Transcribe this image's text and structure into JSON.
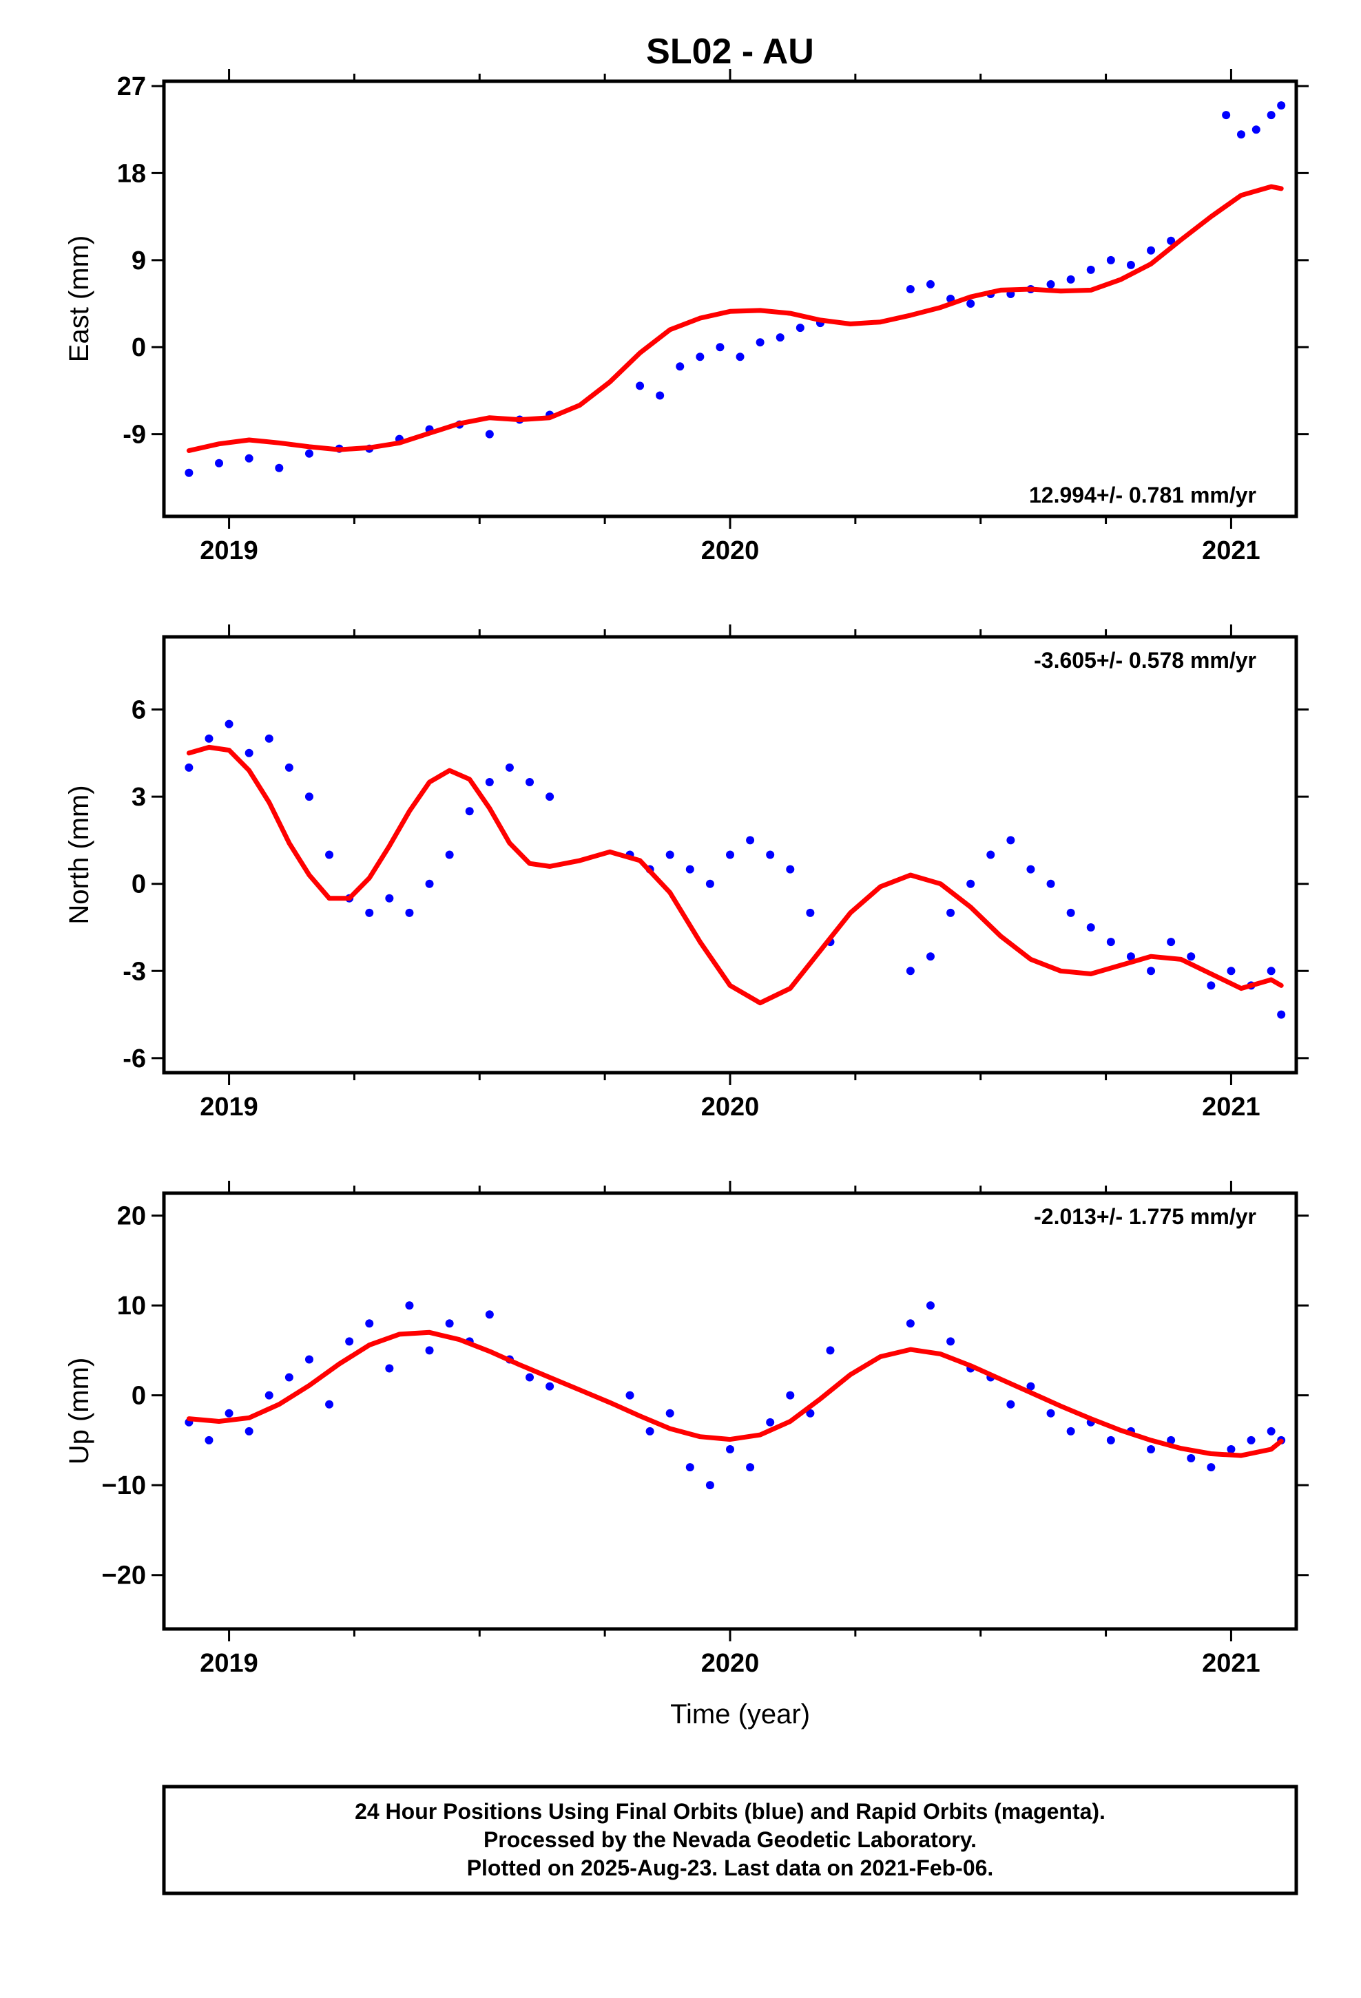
{
  "title": "SL02 - AU",
  "colors": {
    "final_orbits": "#0000ff",
    "model_fit": "#ff0000",
    "frame": "#000000"
  },
  "footer": {
    "line1": "24 Hour Positions Using Final Orbits (blue) and Rapid Orbits (magenta).",
    "line2": "Processed by the Nevada Geodetic Laboratory.",
    "line3": "Plotted on 2025-Aug-23. Last data on 2021-Feb-06."
  },
  "chart_data": [
    {
      "type": "scatter",
      "ylabel": "East (mm)",
      "xlabel": "",
      "xlim": [
        2018.87,
        2021.13
      ],
      "ylim": [
        -17.5,
        27.5
      ],
      "xticks": [
        "2019",
        "2020",
        "2021"
      ],
      "yticks": [
        "-9",
        "0",
        "9",
        "18",
        "27"
      ],
      "rate": "12.994+/- 0.781 mm/yr",
      "grid": false,
      "series": [
        {
          "x": [
            2018.92,
            2018.98,
            2019.04,
            2019.1,
            2019.16,
            2019.22,
            2019.28,
            2019.34,
            2019.4,
            2019.46,
            2019.52,
            2019.58,
            2019.64,
            2019.82,
            2019.86,
            2019.9,
            2019.94,
            2019.98,
            2020.02,
            2020.06,
            2020.1,
            2020.14,
            2020.18,
            2020.36,
            2020.4,
            2020.44,
            2020.48,
            2020.52,
            2020.56,
            2020.6,
            2020.64,
            2020.68,
            2020.72,
            2020.76,
            2020.8,
            2020.84,
            2020.88,
            2020.99,
            2021.02,
            2021.05,
            2021.08,
            2021.1
          ],
          "y": [
            -13,
            -12,
            -11.5,
            -12.5,
            -11,
            -10.5,
            -10.5,
            -9.5,
            -8.5,
            -8,
            -9,
            -7.5,
            -7,
            -4,
            -5,
            -2,
            -1,
            0,
            -1,
            0.5,
            1,
            2,
            2.5,
            6,
            6.5,
            5,
            4.5,
            5.5,
            5.5,
            6,
            6.5,
            7,
            8,
            9,
            8.5,
            10,
            11,
            24,
            22,
            22.5,
            24,
            25
          ]
        },
        {
          "x": [
            2018.92,
            2018.98,
            2019.04,
            2019.1,
            2019.16,
            2019.22,
            2019.28,
            2019.34,
            2019.4,
            2019.46,
            2019.52,
            2019.58,
            2019.64,
            2019.7,
            2019.76,
            2019.82,
            2019.88,
            2019.94,
            2020.0,
            2020.06,
            2020.12,
            2020.18,
            2020.24,
            2020.3,
            2020.36,
            2020.42,
            2020.48,
            2020.54,
            2020.6,
            2020.66,
            2020.72,
            2020.78,
            2020.84,
            2020.9,
            2020.96,
            2021.02,
            2021.08,
            2021.1
          ],
          "y": [
            -10.7,
            -10.0,
            -9.6,
            -9.9,
            -10.3,
            -10.6,
            -10.4,
            -9.9,
            -8.9,
            -7.9,
            -7.3,
            -7.5,
            -7.3,
            -6.0,
            -3.6,
            -0.6,
            1.8,
            3.0,
            3.7,
            3.8,
            3.5,
            2.8,
            2.4,
            2.6,
            3.3,
            4.1,
            5.2,
            5.9,
            6.0,
            5.8,
            5.9,
            7.0,
            8.6,
            11.1,
            13.5,
            15.7,
            16.6,
            16.4
          ]
        }
      ]
    },
    {
      "type": "scatter",
      "ylabel": "North (mm)",
      "xlabel": "",
      "xlim": [
        2018.87,
        2021.13
      ],
      "ylim": [
        -6.5,
        8.5
      ],
      "xticks": [
        "2019",
        "2020",
        "2021"
      ],
      "yticks": [
        "-6",
        "-3",
        "0",
        "3",
        "6"
      ],
      "rate": "-3.605+/- 0.578 mm/yr",
      "grid": false,
      "series": [
        {
          "x": [
            2018.92,
            2018.96,
            2019.0,
            2019.04,
            2019.08,
            2019.12,
            2019.16,
            2019.2,
            2019.24,
            2019.28,
            2019.32,
            2019.36,
            2019.4,
            2019.44,
            2019.48,
            2019.52,
            2019.56,
            2019.6,
            2019.64,
            2019.8,
            2019.84,
            2019.88,
            2019.92,
            2019.96,
            2020.0,
            2020.04,
            2020.08,
            2020.12,
            2020.16,
            2020.2,
            2020.36,
            2020.4,
            2020.44,
            2020.48,
            2020.52,
            2020.56,
            2020.6,
            2020.64,
            2020.68,
            2020.72,
            2020.76,
            2020.8,
            2020.84,
            2020.88,
            2020.92,
            2020.96,
            2021.0,
            2021.04,
            2021.08,
            2021.1
          ],
          "y": [
            4,
            5,
            5.5,
            4.5,
            5,
            4,
            3,
            1,
            -0.5,
            -1,
            -0.5,
            -1,
            0,
            1,
            2.5,
            3.5,
            4,
            3.5,
            3,
            1,
            0.5,
            1,
            0.5,
            0,
            1,
            1.5,
            1,
            0.5,
            -1,
            -2,
            -3,
            -2.5,
            -1,
            0,
            1,
            1.5,
            0.5,
            0,
            -1,
            -1.5,
            -2,
            -2.5,
            -3,
            -2,
            -2.5,
            -3.5,
            -3,
            -3.5,
            -3,
            -4.5
          ]
        },
        {
          "x": [
            2018.92,
            2018.96,
            2019.0,
            2019.04,
            2019.08,
            2019.12,
            2019.16,
            2019.2,
            2019.24,
            2019.28,
            2019.32,
            2019.36,
            2019.4,
            2019.44,
            2019.48,
            2019.52,
            2019.56,
            2019.6,
            2019.64,
            2019.7,
            2019.76,
            2019.82,
            2019.88,
            2019.94,
            2020.0,
            2020.06,
            2020.12,
            2020.18,
            2020.24,
            2020.3,
            2020.36,
            2020.42,
            2020.48,
            2020.54,
            2020.6,
            2020.66,
            2020.72,
            2020.78,
            2020.84,
            2020.9,
            2020.96,
            2021.02,
            2021.08,
            2021.1
          ],
          "y": [
            4.5,
            4.7,
            4.6,
            3.9,
            2.8,
            1.4,
            0.3,
            -0.5,
            -0.5,
            0.2,
            1.3,
            2.5,
            3.5,
            3.9,
            3.6,
            2.6,
            1.4,
            0.7,
            0.6,
            0.8,
            1.1,
            0.8,
            -0.3,
            -2.0,
            -3.5,
            -4.1,
            -3.6,
            -2.3,
            -1.0,
            -0.1,
            0.3,
            0.0,
            -0.8,
            -1.8,
            -2.6,
            -3.0,
            -3.1,
            -2.8,
            -2.5,
            -2.6,
            -3.1,
            -3.6,
            -3.3,
            -3.5
          ]
        }
      ]
    },
    {
      "type": "scatter",
      "ylabel": "Up (mm)",
      "xlabel": "Time (year)",
      "xlim": [
        2018.87,
        2021.13
      ],
      "ylim": [
        -26,
        22.5
      ],
      "xticks": [
        "2019",
        "2020",
        "2021"
      ],
      "yticks": [
        "−20",
        "−10",
        "0",
        "10",
        "20"
      ],
      "rate": "-2.013+/- 1.775 mm/yr",
      "grid": false,
      "series": [
        {
          "x": [
            2018.92,
            2018.96,
            2019.0,
            2019.04,
            2019.08,
            2019.12,
            2019.16,
            2019.2,
            2019.24,
            2019.28,
            2019.32,
            2019.36,
            2019.4,
            2019.44,
            2019.48,
            2019.52,
            2019.56,
            2019.6,
            2019.64,
            2019.8,
            2019.84,
            2019.88,
            2019.92,
            2019.96,
            2020.0,
            2020.04,
            2020.08,
            2020.12,
            2020.16,
            2020.2,
            2020.36,
            2020.4,
            2020.44,
            2020.48,
            2020.52,
            2020.56,
            2020.6,
            2020.64,
            2020.68,
            2020.72,
            2020.76,
            2020.8,
            2020.84,
            2020.88,
            2020.92,
            2020.96,
            2021.0,
            2021.04,
            2021.08,
            2021.1
          ],
          "y": [
            -3,
            -5,
            -2,
            -4,
            0,
            2,
            4,
            -1,
            6,
            8,
            3,
            10,
            5,
            8,
            6,
            9,
            4,
            2,
            1,
            0,
            -4,
            -2,
            -8,
            -10,
            -6,
            -8,
            -3,
            0,
            -2,
            5,
            8,
            10,
            6,
            3,
            2,
            -1,
            1,
            -2,
            -4,
            -3,
            -5,
            -4,
            -6,
            -5,
            -7,
            -8,
            -6,
            -5,
            -4,
            -5
          ]
        },
        {
          "x": [
            2018.92,
            2018.98,
            2019.04,
            2019.1,
            2019.16,
            2019.22,
            2019.28,
            2019.34,
            2019.4,
            2019.46,
            2019.52,
            2019.58,
            2019.64,
            2019.7,
            2019.76,
            2019.82,
            2019.88,
            2019.94,
            2020.0,
            2020.06,
            2020.12,
            2020.18,
            2020.24,
            2020.3,
            2020.36,
            2020.42,
            2020.48,
            2020.54,
            2020.6,
            2020.66,
            2020.72,
            2020.78,
            2020.84,
            2020.9,
            2020.96,
            2021.02,
            2021.08,
            2021.1
          ],
          "y": [
            -2.6,
            -2.9,
            -2.5,
            -1.0,
            1.1,
            3.5,
            5.6,
            6.8,
            7.0,
            6.2,
            4.9,
            3.4,
            2.0,
            0.6,
            -0.8,
            -2.3,
            -3.7,
            -4.6,
            -4.9,
            -4.4,
            -2.9,
            -0.4,
            2.3,
            4.3,
            5.1,
            4.6,
            3.3,
            1.8,
            0.3,
            -1.2,
            -2.6,
            -3.9,
            -5.0,
            -5.9,
            -6.5,
            -6.7,
            -6.0,
            -5.1
          ]
        }
      ]
    }
  ]
}
